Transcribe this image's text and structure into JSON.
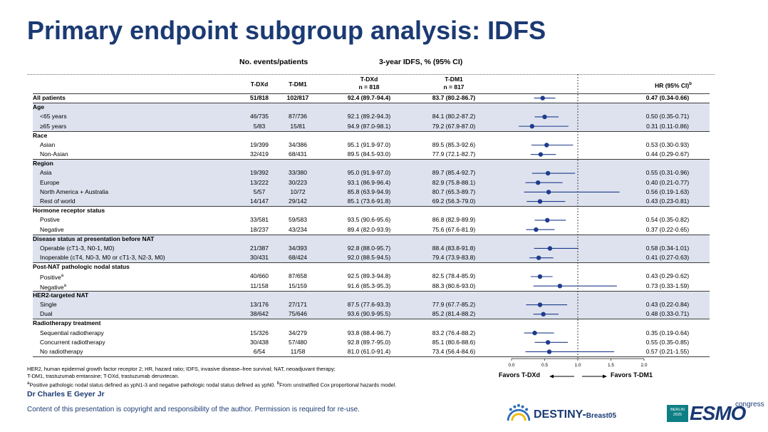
{
  "title": "Primary endpoint subgroup analysis: IDFS",
  "group_headers": {
    "events": "No. events/patients",
    "idfs": "3-year IDFS, % (95% CI)"
  },
  "col_headers": {
    "tdxd": "T-DXd",
    "tdm1": "T-DM1",
    "tdxd_idfs_1": "T-DXd",
    "tdxd_idfs_2": "n = 818",
    "tdm1_idfs_1": "T-DM1",
    "tdm1_idfs_2": "n = 817",
    "hr_main": "HR (95% CI)",
    "hr_sup": "b"
  },
  "chart_data": {
    "type": "forest",
    "x_ticks": [
      "0.0",
      "0.5",
      "1.0",
      "1.5",
      "2.0"
    ],
    "xlim": [
      0,
      2
    ],
    "reference_line": 1.0,
    "favors_left": "Favors T-DXd",
    "favors_right": "Favors T-DM1",
    "rows": [
      {
        "kind": "data",
        "label": "All patients",
        "bold": true,
        "shade": false,
        "ev1": "51/818",
        "ev2": "102/817",
        "idfs1": "92.4 (89.7-94.4)",
        "idfs2": "83.7 (80.2-86.7)",
        "hr_text": "0.47 (0.34-0.66)",
        "hr": 0.47,
        "lo": 0.34,
        "hi": 0.66
      },
      {
        "kind": "header",
        "label": "Age",
        "shade": true
      },
      {
        "kind": "data",
        "label": "<65 years",
        "shade": true,
        "ev1": "46/735",
        "ev2": "87/736",
        "idfs1": "92.1 (89.2-94.3)",
        "idfs2": "84.1 (80.2-87.2)",
        "hr_text": "0.50 (0.35-0.71)",
        "hr": 0.5,
        "lo": 0.35,
        "hi": 0.71
      },
      {
        "kind": "data",
        "label": "≥65 years",
        "shade": true,
        "ev1": "5/83",
        "ev2": "15/81",
        "idfs1": "94.9 (87.0-98.1)",
        "idfs2": "79.2 (67.9-87.0)",
        "hr_text": "0.31 (0.11-0.86)",
        "hr": 0.31,
        "lo": 0.11,
        "hi": 0.86
      },
      {
        "kind": "header",
        "label": "Race",
        "shade": false
      },
      {
        "kind": "data",
        "label": "Asian",
        "shade": false,
        "ev1": "19/399",
        "ev2": "34/386",
        "idfs1": "95.1 (91.9-97.0)",
        "idfs2": "89.5 (85.3-92.6)",
        "hr_text": "0.53 (0.30-0.93)",
        "hr": 0.53,
        "lo": 0.3,
        "hi": 0.93
      },
      {
        "kind": "data",
        "label": "Non-Asian",
        "shade": false,
        "ev1": "32/419",
        "ev2": "68/431",
        "idfs1": "89.5 (84.5-93.0)",
        "idfs2": "77.9 (72.1-82.7)",
        "hr_text": "0.44 (0.29-0.67)",
        "hr": 0.44,
        "lo": 0.29,
        "hi": 0.67
      },
      {
        "kind": "header",
        "label": "Region",
        "shade": true
      },
      {
        "kind": "data",
        "label": "Asia",
        "shade": true,
        "ev1": "19/392",
        "ev2": "33/380",
        "idfs1": "95.0 (91.9-97.0)",
        "idfs2": "89.7 (85.4-92.7)",
        "hr_text": "0.55 (0.31-0.96)",
        "hr": 0.55,
        "lo": 0.31,
        "hi": 0.96
      },
      {
        "kind": "data",
        "label": "Europe",
        "shade": true,
        "ev1": "13/222",
        "ev2": "30/223",
        "idfs1": "93.1 (86.9-96.4)",
        "idfs2": "82.9 (75.8-88.1)",
        "hr_text": "0.40 (0.21-0.77)",
        "hr": 0.4,
        "lo": 0.21,
        "hi": 0.77
      },
      {
        "kind": "data",
        "label": "North America + Australia",
        "shade": true,
        "ev1": "5/57",
        "ev2": "10/72",
        "idfs1": "85.8 (63.9-94.9)",
        "idfs2": "80.7 (65.3-89.7)",
        "hr_text": "0.56 (0.19-1.63)",
        "hr": 0.56,
        "lo": 0.19,
        "hi": 1.63
      },
      {
        "kind": "data",
        "label": "Rest of world",
        "shade": true,
        "ev1": "14/147",
        "ev2": "29/142",
        "idfs1": "85.1 (73.6-91.8)",
        "idfs2": "69.2 (56.3-79.0)",
        "hr_text": "0.43 (0.23-0.81)",
        "hr": 0.43,
        "lo": 0.23,
        "hi": 0.81
      },
      {
        "kind": "header",
        "label": "Hormone receptor status",
        "shade": false
      },
      {
        "kind": "data",
        "label": "Postive",
        "shade": false,
        "ev1": "33/581",
        "ev2": "59/583",
        "idfs1": "93.5 (90.6-95.6)",
        "idfs2": "86.8 (82.9-89.9)",
        "hr_text": "0.54 (0.35-0.82)",
        "hr": 0.54,
        "lo": 0.35,
        "hi": 0.82
      },
      {
        "kind": "data",
        "label": "Negative",
        "shade": false,
        "ev1": "18/237",
        "ev2": "43/234",
        "idfs1": "89.4 (82.0-93.9)",
        "idfs2": "75.6 (67.6-81.9)",
        "hr_text": "0.37 (0.22-0.65)",
        "hr": 0.37,
        "lo": 0.22,
        "hi": 0.65
      },
      {
        "kind": "header",
        "label": "Disease status at presentation before NAT",
        "shade": true
      },
      {
        "kind": "data",
        "label": "Operable (cT1-3, N0-1, M0)",
        "shade": true,
        "ev1": "21/387",
        "ev2": "34/393",
        "idfs1": "92.8 (88.0-95.7)",
        "idfs2": "88.4 (83.8-91.8)",
        "hr_text": "0.58 (0.34-1.01)",
        "hr": 0.58,
        "lo": 0.34,
        "hi": 1.01
      },
      {
        "kind": "data",
        "label": "Inoperable (cT4, N0-3, M0 or cT1-3, N2-3, M0)",
        "shade": true,
        "ev1": "30/431",
        "ev2": "68/424",
        "idfs1": "92.0 (88.5-94.5)",
        "idfs2": "79.4 (73.9-83.8)",
        "hr_text": "0.41 (0.27-0.63)",
        "hr": 0.41,
        "lo": 0.27,
        "hi": 0.63
      },
      {
        "kind": "header",
        "label": "Post-NAT pathologic nodal status",
        "shade": false
      },
      {
        "kind": "data",
        "label": "Positive",
        "sup": "a",
        "shade": false,
        "ev1": "40/660",
        "ev2": "87/658",
        "idfs1": "92.5 (89.3-94.8)",
        "idfs2": "82.5 (78.4-85.9)",
        "hr_text": "0.43 (0.29-0.62)",
        "hr": 0.43,
        "lo": 0.29,
        "hi": 0.62
      },
      {
        "kind": "data",
        "label": "Negative",
        "sup": "a",
        "shade": false,
        "ev1": "11/158",
        "ev2": "15/159",
        "idfs1": "91.6 (85.3-95.3)",
        "idfs2": "88.3 (80.6-93.0)",
        "hr_text": "0.73 (0.33-1.59)",
        "hr": 0.73,
        "lo": 0.33,
        "hi": 1.59
      },
      {
        "kind": "header",
        "label": "HER2-targeted NAT",
        "shade": true
      },
      {
        "kind": "data",
        "label": "Single",
        "shade": true,
        "ev1": "13/176",
        "ev2": "27/171",
        "idfs1": "87.5 (77.6-93.3)",
        "idfs2": "77.9 (67.7-85.2)",
        "hr_text": "0.43 (0.22-0.84)",
        "hr": 0.43,
        "lo": 0.22,
        "hi": 0.84
      },
      {
        "kind": "data",
        "label": "Dual",
        "shade": true,
        "ev1": "38/642",
        "ev2": "75/646",
        "idfs1": "93.6 (90.9-95.5)",
        "idfs2": "85.2 (81.4-88.2)",
        "hr_text": "0.48 (0.33-0.71)",
        "hr": 0.48,
        "lo": 0.33,
        "hi": 0.71
      },
      {
        "kind": "header",
        "label": "Radiotherapy treatment",
        "shade": false
      },
      {
        "kind": "data",
        "label": "Sequential radiotherapy",
        "shade": false,
        "ev1": "15/326",
        "ev2": "34/279",
        "idfs1": "93.8 (88.4-96.7)",
        "idfs2": "83.2 (76.4-88.2)",
        "hr_text": "0.35 (0.19-0.64)",
        "hr": 0.35,
        "lo": 0.19,
        "hi": 0.64
      },
      {
        "kind": "data",
        "label": "Concurrent radiotherapy",
        "shade": false,
        "ev1": "30/438",
        "ev2": "57/480",
        "idfs1": "92.8 (89.7-95.0)",
        "idfs2": "85.1 (80.6-88.6)",
        "hr_text": "0.55 (0.35-0.85)",
        "hr": 0.55,
        "lo": 0.35,
        "hi": 0.85
      },
      {
        "kind": "data",
        "label": "No radiotherapy",
        "shade": false,
        "ev1": "6/54",
        "ev2": "11/58",
        "idfs1": "81.0 (61.0-91.4)",
        "idfs2": "73.4 (56.4-84.6)",
        "hr_text": "0.57 (0.21-1.55)",
        "hr": 0.57,
        "lo": 0.21,
        "hi": 1.55
      }
    ]
  },
  "footnotes": {
    "line1": "HER2, human epidermal growth factor receptor 2; HR, hazard ratio; IDFS, invasive disease–free survival; NAT, neoadjuvant therapy;",
    "line2": "T-DM1, trastuzumab emtansine; T-DXd, trastuzumab deruxtecan.",
    "line3_sup_a": "a",
    "line3_a": "Positive pathologic nodal status defined as ypN1-3 and negative pathologic nodal status defined as ypN0. ",
    "line3_sup_b": "b",
    "line3_b": "From unstratified Cox proportional hazards model."
  },
  "author": "Dr Charles E Geyer Jr",
  "copyright": "Content of this presentation is copyright and responsibility of the author. Permission is required for re-use.",
  "logos": {
    "destiny_main": "DESTINY-",
    "destiny_sub": "Breast05",
    "esmo_badge_1": "BERLIN",
    "esmo_badge_2": "2025",
    "esmo_word": "ESMO",
    "esmo_congress": "congress"
  },
  "colors": {
    "title": "#1b3a73",
    "marker": "#1f3c8c",
    "shade": "#dde2ee",
    "esmo_badge": "#0e7f84"
  }
}
